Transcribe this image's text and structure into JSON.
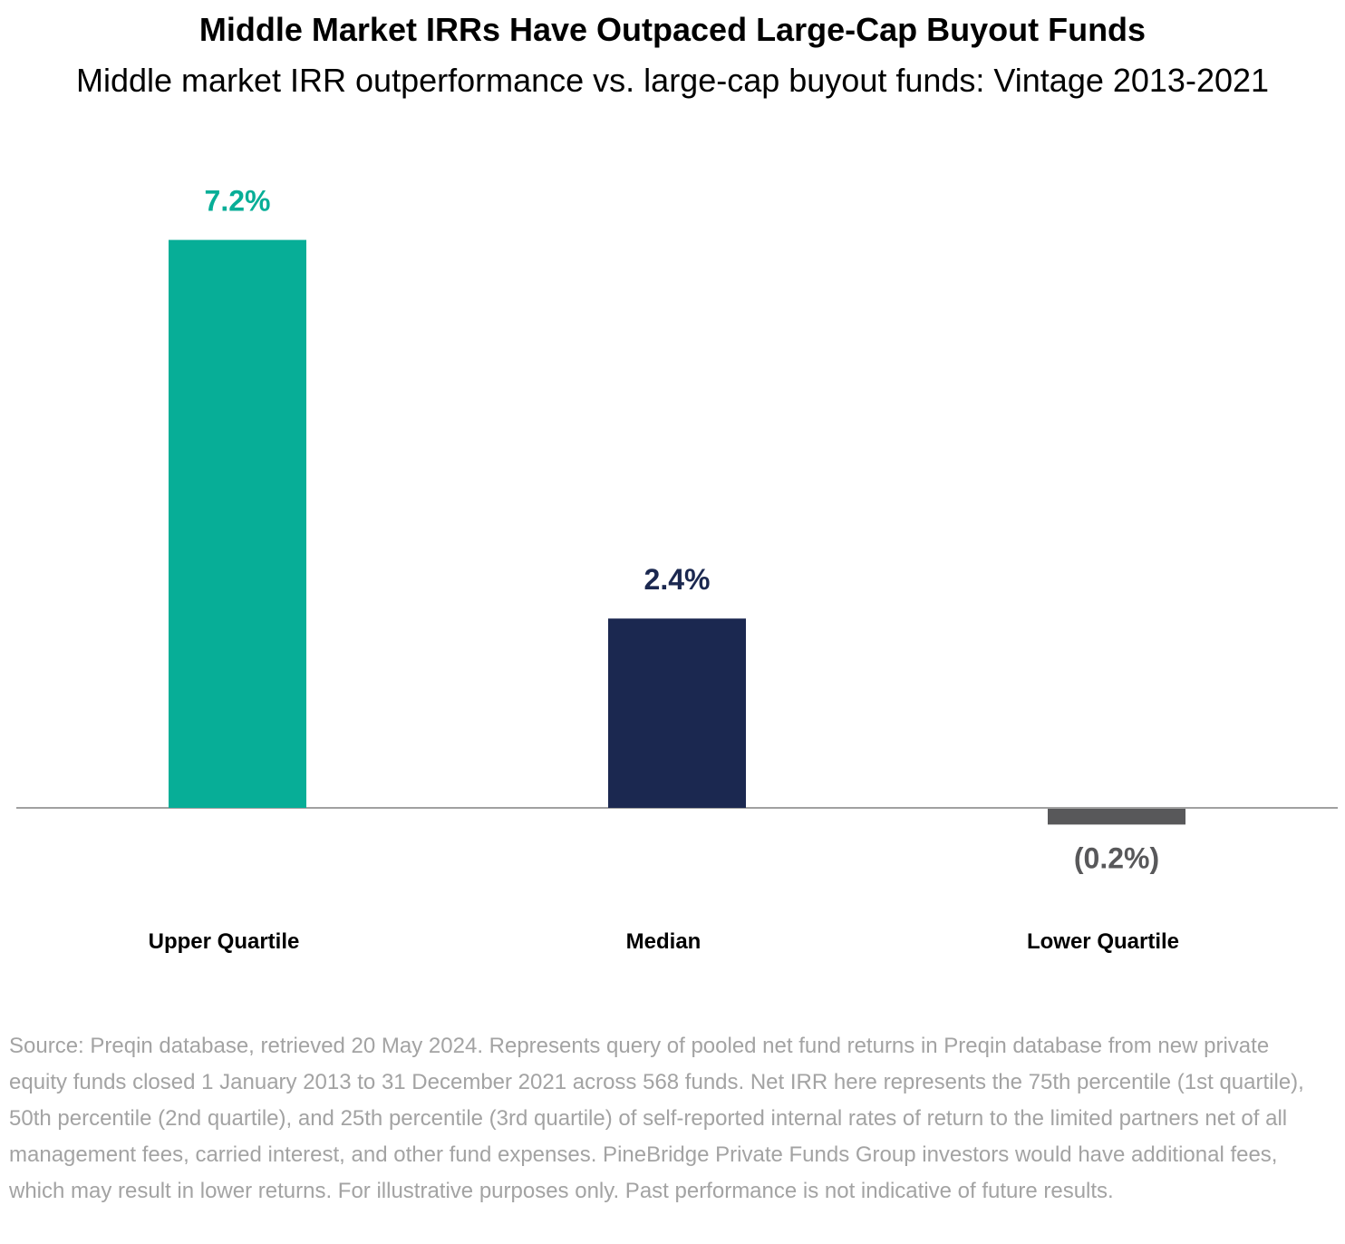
{
  "title": "Middle Market IRRs Have Outpaced Large-Cap Buyout Funds",
  "subtitle": "Middle market IRR outperformance vs. large-cap buyout funds: Vintage 2013-2021",
  "source_note": "Source: Preqin database, retrieved 20 May 2024. Represents query of pooled net fund returns in Preqin database from new private equity funds closed 1 January 2013 to 31 December 2021 across 568 funds. Net IRR here represents the 75th percentile (1st quartile), 50th percentile (2nd quartile), and 25th percentile (3rd quartile) of self-reported internal rates of return to the limited partners net of all management fees, carried interest, and other fund expenses. PineBridge Private Funds Group investors would have additional fees, which may result in lower returns. For illustrative purposes only. Past performance is not indicative of future results.",
  "chart_data": {
    "type": "bar",
    "title": "Middle Market IRRs Have Outpaced Large-Cap Buyout Funds",
    "subtitle": "Middle market IRR outperformance vs. large-cap buyout funds: Vintage 2013-2021",
    "categories": [
      "Upper Quartile",
      "Median",
      "Lower Quartile"
    ],
    "values": [
      7.2,
      2.4,
      -0.2
    ],
    "data_labels": [
      "7.2%",
      "2.4%",
      "(0.2%)"
    ],
    "colors": [
      "#07ae97",
      "#1b2850",
      "#58585a"
    ],
    "ylim": [
      -0.2,
      7.2
    ],
    "grid": false,
    "legend": "none",
    "baseline_color": "#808080",
    "category_label_color": "#000000"
  }
}
